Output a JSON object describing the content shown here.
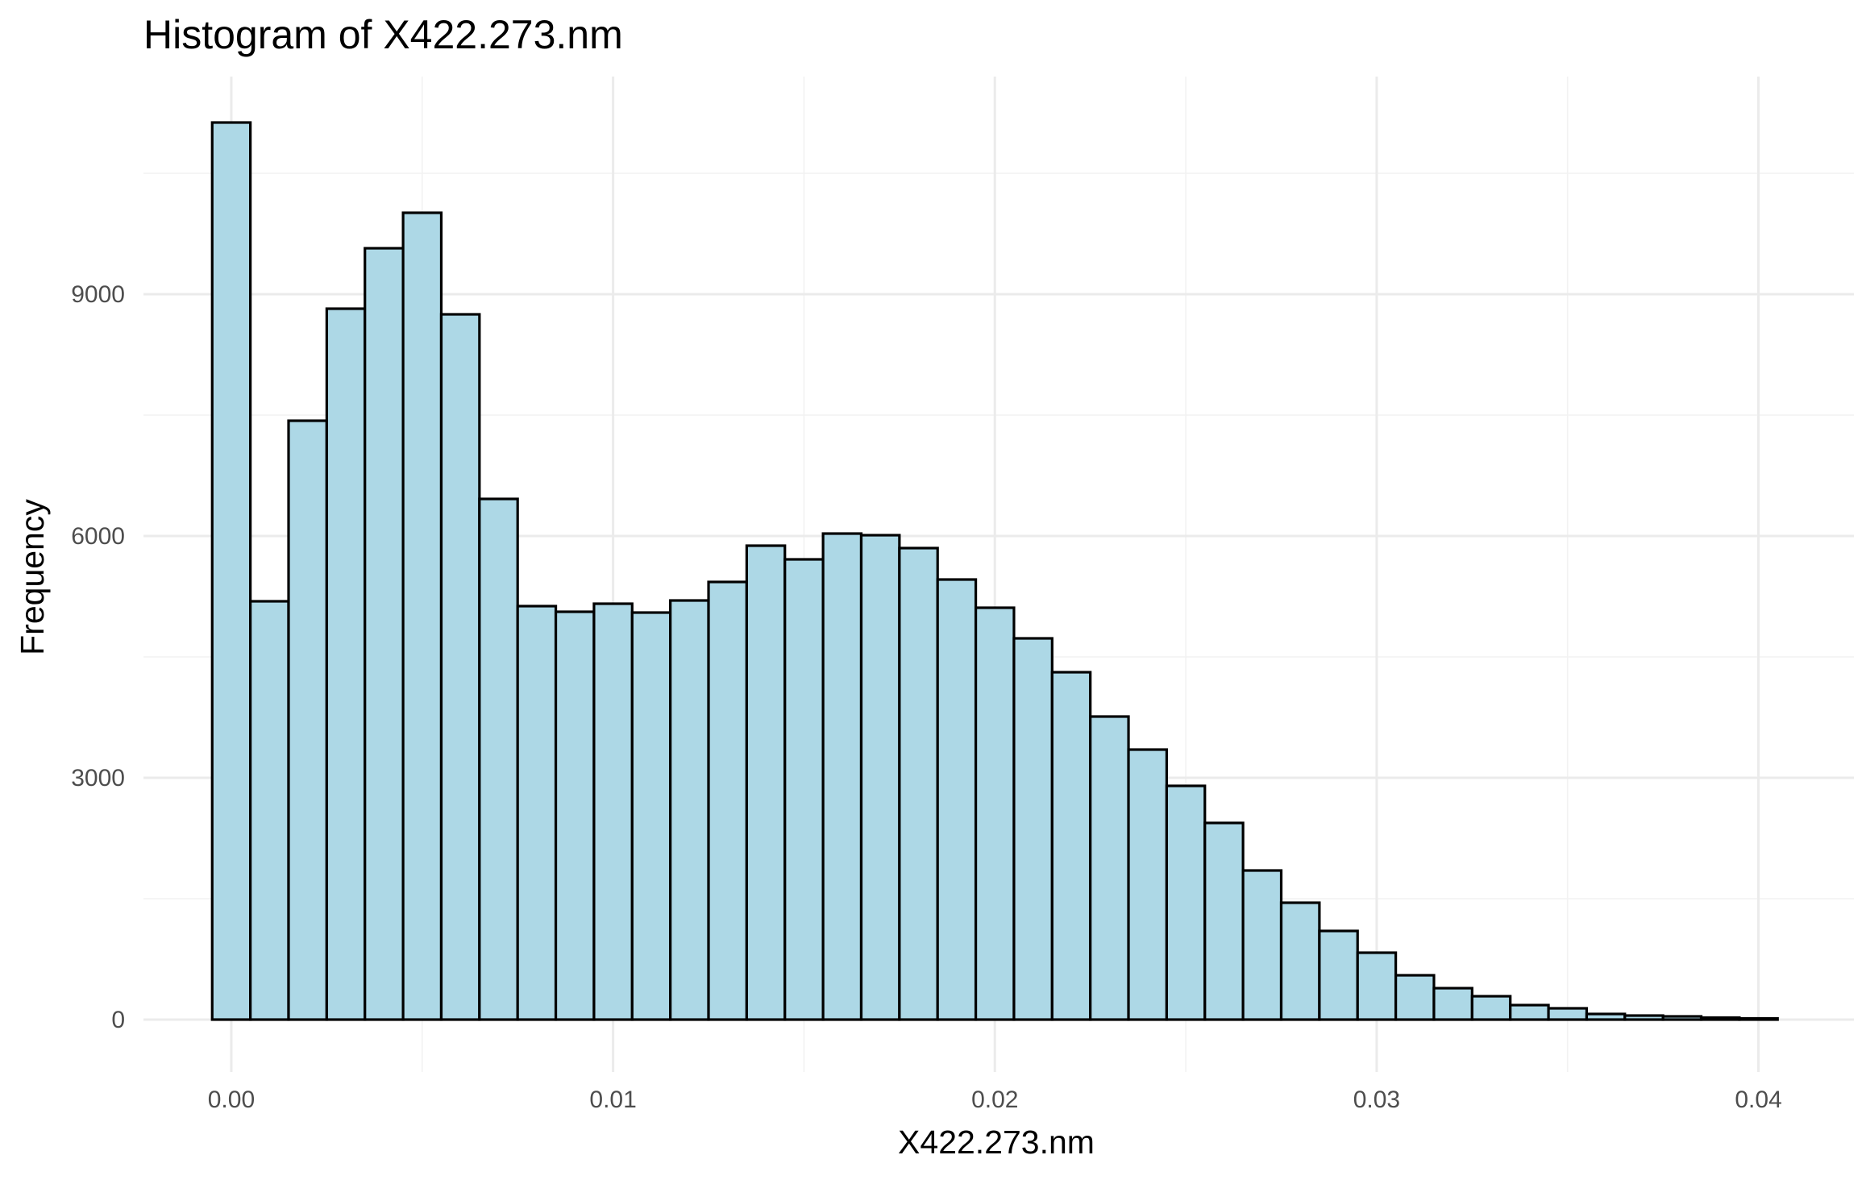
{
  "chart_data": {
    "type": "bar",
    "title": "Histogram of X422.273.nm",
    "xlabel": "X422.273.nm",
    "ylabel": "Frequency",
    "xlim": [
      -0.0023,
      0.0425
    ],
    "ylim": [
      -650,
      11700
    ],
    "grid": true,
    "legend": "none",
    "colors": {
      "fill": "#add8e6",
      "outline": "#000000",
      "grid": "#ebebeb",
      "tick_text": "#4d4d4d"
    },
    "bin_width": 0.001,
    "x_ticks": [
      {
        "value": 0.0,
        "label": "0.00"
      },
      {
        "value": 0.01,
        "label": "0.01"
      },
      {
        "value": 0.02,
        "label": "0.02"
      },
      {
        "value": 0.03,
        "label": "0.03"
      },
      {
        "value": 0.04,
        "label": "0.04"
      }
    ],
    "y_ticks": [
      {
        "value": 0,
        "label": "0"
      },
      {
        "value": 3000,
        "label": "3000"
      },
      {
        "value": 6000,
        "label": "6000"
      },
      {
        "value": 9000,
        "label": "9000"
      }
    ],
    "bin_centers": [
      0.0,
      0.001,
      0.002,
      0.003,
      0.004,
      0.005,
      0.006,
      0.007,
      0.008,
      0.009,
      0.01,
      0.011,
      0.012,
      0.013,
      0.014,
      0.015,
      0.016,
      0.017,
      0.018,
      0.019,
      0.02,
      0.021,
      0.022,
      0.023,
      0.024,
      0.025,
      0.026,
      0.027,
      0.028,
      0.029,
      0.03,
      0.031,
      0.032,
      0.033,
      0.034,
      0.035,
      0.036,
      0.037,
      0.038,
      0.039,
      0.04
    ],
    "values": [
      11130,
      5190,
      7430,
      8820,
      9570,
      10010,
      8750,
      6460,
      5130,
      5060,
      5160,
      5050,
      5200,
      5430,
      5880,
      5710,
      6030,
      6010,
      5850,
      5460,
      5110,
      4730,
      4310,
      3760,
      3350,
      2900,
      2440,
      1850,
      1450,
      1100,
      830,
      550,
      390,
      290,
      180,
      140,
      70,
      50,
      40,
      25,
      15
    ]
  }
}
